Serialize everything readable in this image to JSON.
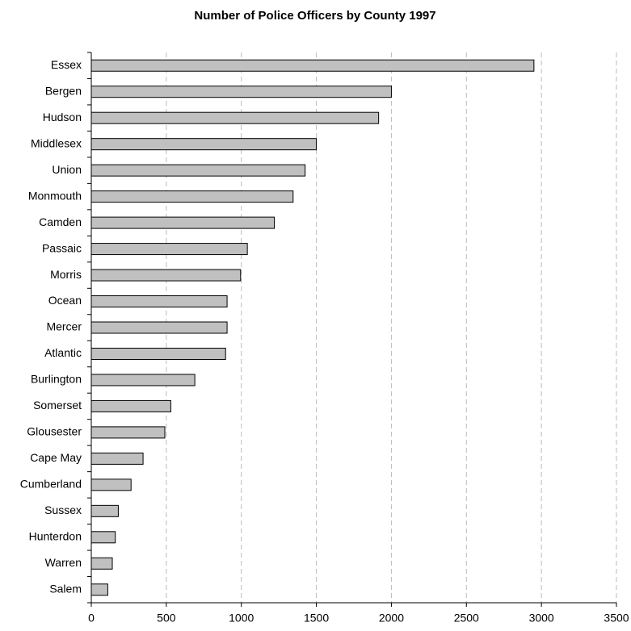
{
  "chart_data": {
    "type": "barh",
    "title": "Number of Police Officers by County 1997",
    "categories": [
      "Essex",
      "Bergen",
      "Hudson",
      "Middlesex",
      "Union",
      "Monmouth",
      "Camden",
      "Passaic",
      "Morris",
      "Ocean",
      "Mercer",
      "Atlantic",
      "Burlington",
      "Somerset",
      "Glousester",
      "Cape May",
      "Cumberland",
      "Sussex",
      "Hunterdon",
      "Warren",
      "Salem"
    ],
    "values": [
      2950,
      2000,
      1915,
      1500,
      1425,
      1345,
      1220,
      1040,
      995,
      905,
      905,
      895,
      690,
      530,
      490,
      345,
      265,
      180,
      160,
      140,
      110
    ],
    "color": "#c0c0c0",
    "xlim": [
      0,
      3500
    ],
    "xticks": [
      0,
      500,
      1000,
      1500,
      2000,
      2500,
      3000,
      3500
    ],
    "grid": true
  }
}
